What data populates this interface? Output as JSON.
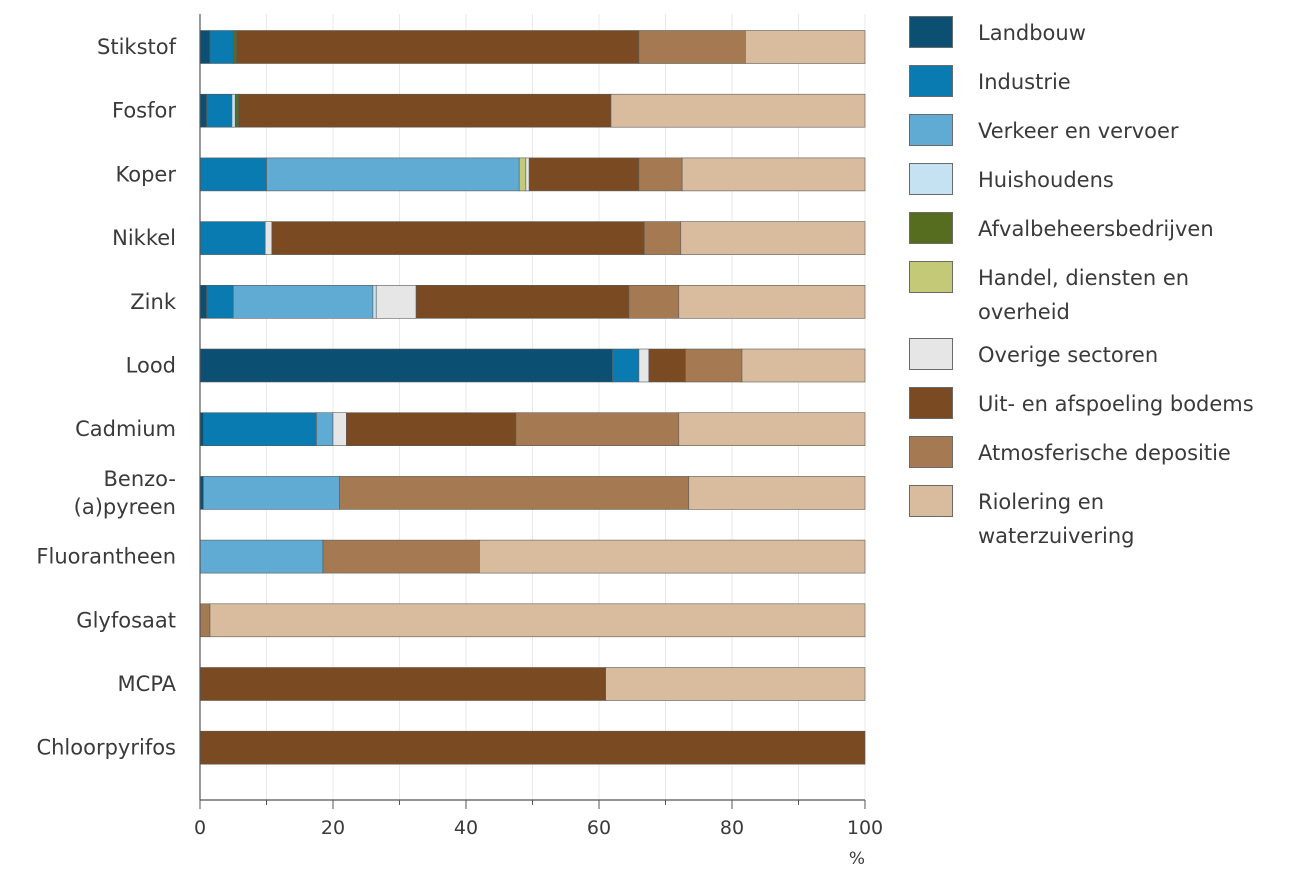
{
  "chart_data": {
    "type": "bar",
    "orientation": "horizontal",
    "stacked": true,
    "title": "",
    "xlabel": "%",
    "ylabel": "",
    "xlim": [
      0,
      100
    ],
    "xticks": [
      0,
      20,
      40,
      60,
      80,
      100
    ],
    "grid": true,
    "legend_position": "right",
    "categories": [
      "Stikstof",
      "Fosfor",
      "Koper",
      "Nikkel",
      "Zink",
      "Lood",
      "Cadmium",
      "Benzo-\n(a)pyreen",
      "Fluorantheen",
      "Glyfosaat",
      "MCPA",
      "Chloorpyrifos"
    ],
    "series": [
      {
        "name": "Landbouw",
        "color": "#0b4f73",
        "values": [
          1.5,
          1,
          0,
          0,
          1,
          62,
          0.5,
          0.5,
          0,
          0,
          0,
          0
        ]
      },
      {
        "name": "Industrie",
        "color": "#0a7bb0",
        "values": [
          3.5,
          3.8,
          10,
          9.8,
          4,
          4,
          17,
          0,
          0,
          0,
          0,
          0
        ]
      },
      {
        "name": "Verkeer en vervoer",
        "color": "#5fabd3",
        "values": [
          0,
          0,
          38,
          0,
          21,
          0,
          2.5,
          20.5,
          18.5,
          0,
          0,
          0
        ]
      },
      {
        "name": "Huishoudens",
        "color": "#c5e2f2",
        "values": [
          0,
          0.5,
          0,
          0,
          0.5,
          0,
          0,
          0,
          0,
          0,
          0,
          0
        ]
      },
      {
        "name": "Afvalbeheersbedrijven",
        "color": "#566d1f",
        "values": [
          0.5,
          0.5,
          0,
          0,
          0,
          0,
          0,
          0,
          0,
          0,
          0,
          0
        ]
      },
      {
        "name": "Handel, diensten en\noverheid",
        "color": "#c3c977",
        "values": [
          0,
          0,
          1,
          0,
          0,
          0,
          0,
          0,
          0,
          0,
          0,
          0
        ]
      },
      {
        "name": "Overige sectoren",
        "color": "#e6e6e6",
        "values": [
          0,
          0,
          0.5,
          1,
          6,
          1.5,
          2,
          0,
          0,
          0,
          0,
          0
        ]
      },
      {
        "name": "Uit- en afspoeling bodems",
        "color": "#7a4a22",
        "values": [
          60.5,
          56,
          16.5,
          56,
          32,
          5.5,
          25.5,
          0,
          0,
          0,
          61,
          100
        ]
      },
      {
        "name": "Atmosferische depositie",
        "color": "#a57a52",
        "values": [
          16,
          0,
          6.5,
          5.5,
          7.5,
          8.5,
          24.5,
          52.5,
          23.5,
          1.5,
          0,
          0
        ]
      },
      {
        "name": "Riolering en\nwaterzuivering",
        "color": "#d9bc9d",
        "values": [
          18,
          38.2,
          27.5,
          27.7,
          28,
          18.5,
          28,
          26.5,
          58,
          98.5,
          39,
          0
        ]
      }
    ]
  }
}
